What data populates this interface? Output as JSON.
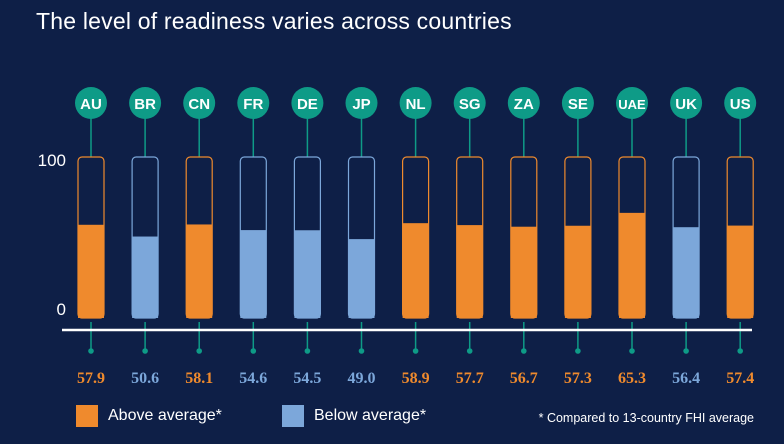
{
  "title": "The level of readiness varies across countries",
  "colors": {
    "background": "#0e1f47",
    "above": "#ef8a2d",
    "below": "#7ca7da",
    "badge": "#0e9b87",
    "baseline": "#ffffff"
  },
  "chart_data": {
    "type": "bar",
    "categories": [
      "AU",
      "BR",
      "CN",
      "FR",
      "DE",
      "JP",
      "NL",
      "SG",
      "ZA",
      "SE",
      "UAE",
      "UK",
      "US"
    ],
    "values": [
      57.9,
      50.6,
      58.1,
      54.6,
      54.5,
      49.0,
      58.9,
      57.7,
      56.7,
      57.3,
      65.3,
      56.4,
      57.4
    ],
    "value_labels": [
      "57.9",
      "50.6",
      "58.1",
      "54.6",
      "54.5",
      "49.0",
      "58.9",
      "57.7",
      "56.7",
      "57.3",
      "65.3",
      "56.4",
      "57.4"
    ],
    "groups": [
      "above",
      "below",
      "above",
      "below",
      "below",
      "below",
      "above",
      "above",
      "above",
      "above",
      "above",
      "below",
      "above"
    ],
    "ylim": [
      0,
      100
    ],
    "yticks": [
      "0",
      "100"
    ],
    "legend": [
      {
        "key": "above",
        "label": "Above average*"
      },
      {
        "key": "below",
        "label": "Below average*"
      }
    ],
    "footnote": "* Compared to 13-country FHI average"
  }
}
